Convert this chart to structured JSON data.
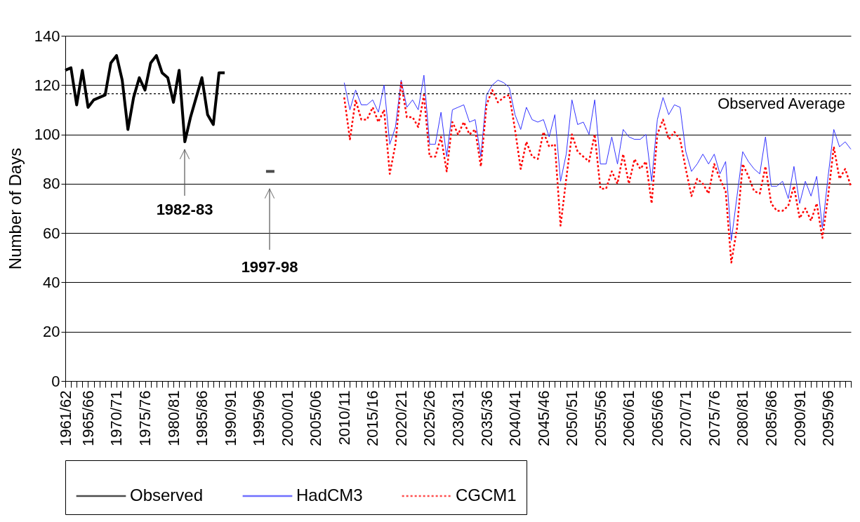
{
  "chart_data": {
    "type": "line",
    "ylabel": "Number of Days",
    "ylim": [
      0,
      140
    ],
    "yticks": [
      0,
      20,
      40,
      60,
      80,
      100,
      120,
      140
    ],
    "categories": [
      "1961/62",
      null,
      null,
      null,
      "1965/66",
      null,
      null,
      null,
      null,
      "1970/71",
      null,
      null,
      null,
      null,
      "1975/76",
      null,
      null,
      null,
      null,
      "1980/81",
      null,
      null,
      null,
      null,
      "1985/86",
      null,
      null,
      null,
      null,
      "1990/91",
      null,
      null,
      null,
      null,
      "1995/96",
      null,
      null,
      null,
      null,
      "2000/01",
      null,
      null,
      null,
      null,
      "2005/06",
      null,
      null,
      null,
      null,
      "2010/11",
      null,
      null,
      null,
      null,
      "2015/16",
      null,
      null,
      null,
      null,
      "2020/21",
      null,
      null,
      null,
      null,
      "2025/26",
      null,
      null,
      null,
      null,
      "2030/31",
      null,
      null,
      null,
      null,
      "2035/36",
      null,
      null,
      null,
      null,
      "2040/41",
      null,
      null,
      null,
      null,
      "2045/46",
      null,
      null,
      null,
      null,
      "2050/51",
      null,
      null,
      null,
      null,
      "2055/56",
      null,
      null,
      null,
      null,
      "2060/61",
      null,
      null,
      null,
      null,
      "2065/66",
      null,
      null,
      null,
      null,
      "2070/71",
      null,
      null,
      null,
      null,
      "2075/76",
      null,
      null,
      null,
      null,
      "2080/81",
      null,
      null,
      null,
      null,
      "2085/86",
      null,
      null,
      null,
      null,
      "2090/91",
      null,
      null,
      null,
      null,
      "2095/96",
      null,
      null,
      null,
      null
    ],
    "grid": "y",
    "legend": "bottom",
    "series": [
      {
        "name": "Observed",
        "color": "#000000",
        "line_style": "solid",
        "values": [
          126,
          127,
          112,
          126,
          111,
          114,
          115,
          116,
          129,
          132,
          122,
          102,
          115,
          123,
          118,
          129,
          132,
          125,
          123,
          113,
          126,
          97,
          107,
          115,
          123,
          108,
          104,
          125,
          125,
          null,
          null,
          null,
          null,
          null,
          null,
          null,
          85,
          null,
          null,
          null,
          null,
          null,
          null,
          null,
          null,
          null,
          null,
          null,
          null,
          null,
          null,
          null,
          null,
          null,
          null,
          null,
          null,
          null,
          null,
          null,
          null,
          null,
          null,
          null,
          null,
          null,
          null,
          null,
          null,
          null,
          null,
          null,
          null,
          null,
          null,
          null,
          null,
          null,
          null,
          null,
          null,
          null,
          null,
          null,
          null,
          null,
          null,
          null,
          null,
          null,
          null,
          null,
          null,
          null,
          null,
          null,
          null,
          null,
          null,
          null,
          null,
          null,
          null,
          null,
          null,
          null,
          null,
          null,
          null,
          null,
          null,
          null,
          null,
          null,
          null,
          null,
          null,
          null,
          null,
          null,
          null,
          null,
          null,
          null,
          null,
          null,
          null,
          null,
          null,
          null,
          null,
          null,
          null,
          null,
          null,
          null,
          null,
          null,
          null
        ]
      },
      {
        "name": "HadCM3",
        "color": "#3333ff",
        "line_style": "solid",
        "values": [
          null,
          null,
          null,
          null,
          null,
          null,
          null,
          null,
          null,
          null,
          null,
          null,
          null,
          null,
          null,
          null,
          null,
          null,
          null,
          null,
          null,
          null,
          null,
          null,
          null,
          null,
          null,
          null,
          null,
          null,
          null,
          null,
          null,
          null,
          null,
          null,
          null,
          null,
          null,
          null,
          null,
          null,
          null,
          null,
          null,
          null,
          null,
          null,
          null,
          121,
          110,
          118,
          112,
          112,
          114,
          109,
          120,
          96,
          103,
          122,
          111,
          114,
          110,
          124,
          96,
          96,
          109,
          91,
          110,
          111,
          112,
          105,
          106,
          91,
          116,
          120,
          122,
          121,
          119,
          108,
          102,
          111,
          106,
          105,
          106,
          99,
          108,
          81,
          92,
          114,
          104,
          105,
          100,
          114,
          88,
          88,
          99,
          88,
          102,
          99,
          98,
          98,
          100,
          81,
          106,
          115,
          108,
          112,
          111,
          93,
          85,
          88,
          92,
          88,
          92,
          84,
          89,
          57,
          75,
          93,
          89,
          86,
          84,
          99,
          79,
          79,
          81,
          74,
          87,
          72,
          81,
          75,
          83,
          62,
          83,
          102,
          95,
          97,
          94
        ]
      },
      {
        "name": "CGCM1",
        "color": "#ff0000",
        "line_style": "dotted",
        "values": [
          null,
          null,
          null,
          null,
          null,
          null,
          null,
          null,
          null,
          null,
          null,
          null,
          null,
          null,
          null,
          null,
          null,
          null,
          null,
          null,
          null,
          null,
          null,
          null,
          null,
          null,
          null,
          null,
          null,
          null,
          null,
          null,
          null,
          null,
          null,
          null,
          null,
          null,
          null,
          null,
          null,
          null,
          null,
          null,
          null,
          null,
          null,
          null,
          null,
          115,
          98,
          114,
          106,
          106,
          111,
          105,
          110,
          84,
          96,
          121,
          107,
          107,
          103,
          116,
          91,
          91,
          99,
          85,
          105,
          100,
          105,
          100,
          102,
          87,
          112,
          118,
          113,
          115,
          116,
          102,
          86,
          97,
          91,
          90,
          101,
          95,
          96,
          63,
          82,
          100,
          93,
          91,
          89,
          100,
          78,
          78,
          85,
          80,
          92,
          80,
          90,
          86,
          89,
          72,
          100,
          106,
          98,
          101,
          98,
          86,
          75,
          82,
          80,
          76,
          88,
          82,
          77,
          48,
          62,
          88,
          83,
          77,
          76,
          87,
          72,
          69,
          69,
          71,
          79,
          66,
          70,
          65,
          72,
          58,
          75,
          95,
          82,
          86,
          79
        ]
      }
    ],
    "ref_lines": [
      {
        "axis": "y",
        "value": 116.5,
        "label": "Observed Average",
        "color": "#000000",
        "line_style": "dotted"
      }
    ],
    "annotations": [
      "1982-83",
      "1997-98"
    ]
  }
}
